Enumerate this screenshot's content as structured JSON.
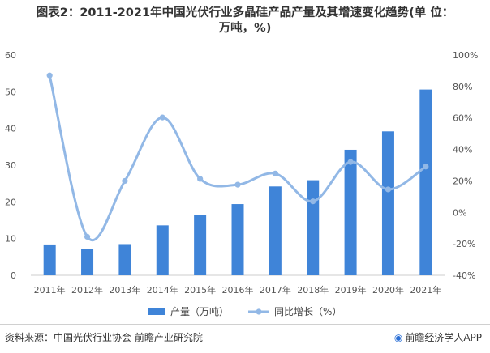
{
  "title_line1": "图表2：2011-2021年中国光伏行业多晶硅产品产量及其增速变化趋势(单 位：",
  "title_line2": "万吨，%)",
  "source": "资料来源：中国光伏行业协会 前瞻产业研究院",
  "brand": "前瞻经济学人APP",
  "brand_icon": "logo-icon",
  "colors": {
    "bar": "#3f84d8",
    "line": "#92b8e6",
    "axis": "#cccccc"
  },
  "chart_data": {
    "type": "bar",
    "categories": [
      "2011年",
      "2012年",
      "2013年",
      "2014年",
      "2015年",
      "2016年",
      "2017年",
      "2018年",
      "2019年",
      "2020年",
      "2021年"
    ],
    "series": [
      {
        "name": "产量（万吨）",
        "type": "bar",
        "axis": "left",
        "values": [
          8.4,
          7.1,
          8.5,
          13.6,
          16.5,
          19.4,
          24.2,
          25.9,
          34.2,
          39.2,
          50.6
        ]
      },
      {
        "name": "同比增长（%）",
        "type": "line",
        "axis": "right",
        "values": [
          87,
          -15.5,
          20.0,
          60.3,
          21.3,
          17.6,
          24.7,
          7.0,
          32.0,
          14.6,
          29.1
        ]
      }
    ],
    "ylim_left": [
      0,
      60
    ],
    "yticks_left": [
      "0",
      "10",
      "20",
      "30",
      "40",
      "50",
      "60"
    ],
    "ylim_right": [
      -40,
      100
    ],
    "yticks_right": [
      "-40%",
      "-20%",
      "0%",
      "20%",
      "40%",
      "60%",
      "80%",
      "100%"
    ],
    "legend_position": "bottom",
    "grid": false
  }
}
